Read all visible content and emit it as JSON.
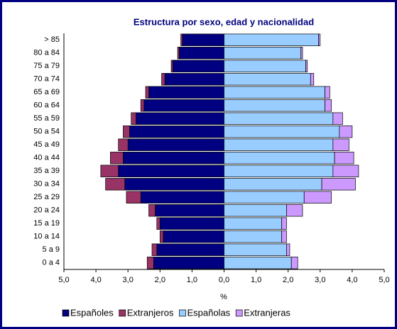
{
  "chart_data": {
    "type": "bar",
    "orientation": "horizontal",
    "stacked": true,
    "title": "Estructura por sexo, edad y nacionalidad",
    "xlabel": "%",
    "categories": [
      "0 a 4",
      "5 a 9",
      "10 a 14",
      "15 a 19",
      "20 a 24",
      "25 a 29",
      "30 a 34",
      "35 a 39",
      "40 a 44",
      "45 a 49",
      "50 a 54",
      "55 a 59",
      "60 a 64",
      "65 a 69",
      "70 a 74",
      "75 a 79",
      "80 a 84",
      "> 85"
    ],
    "series": [
      {
        "name": "Españoles",
        "color": "#000080",
        "values": [
          -2.2,
          -2.1,
          -1.9,
          -2.0,
          -2.15,
          -2.6,
          -3.1,
          -3.3,
          -3.15,
          -3.0,
          -2.95,
          -2.75,
          -2.5,
          -2.35,
          -1.85,
          -1.6,
          -1.4,
          -1.3
        ]
      },
      {
        "name": "Extranjeros",
        "color": "#993366",
        "values": [
          -0.2,
          -0.15,
          -0.1,
          -0.1,
          -0.2,
          -0.45,
          -0.6,
          -0.55,
          -0.4,
          -0.3,
          -0.2,
          -0.15,
          -0.1,
          -0.1,
          -0.1,
          -0.05,
          -0.05,
          -0.05
        ]
      },
      {
        "name": "Españolas",
        "color": "#99ccff",
        "values": [
          2.1,
          1.95,
          1.8,
          1.8,
          1.95,
          2.5,
          3.05,
          3.4,
          3.45,
          3.4,
          3.6,
          3.4,
          3.15,
          3.15,
          2.7,
          2.55,
          2.4,
          2.95
        ]
      },
      {
        "name": "Extranjeras",
        "color": "#cc99ff",
        "values": [
          0.2,
          0.1,
          0.15,
          0.15,
          0.5,
          0.85,
          1.05,
          0.8,
          0.6,
          0.5,
          0.4,
          0.3,
          0.2,
          0.15,
          0.1,
          0.05,
          0.05,
          0.05
        ]
      }
    ],
    "xlim": [
      -5,
      5
    ],
    "xticks": [
      {
        "value": -5,
        "label": "5,0"
      },
      {
        "value": -4,
        "label": "4,0"
      },
      {
        "value": -3,
        "label": "3,0"
      },
      {
        "value": -2,
        "label": "2,0"
      },
      {
        "value": -1,
        "label": "1,0"
      },
      {
        "value": 0,
        "label": "0,0"
      },
      {
        "value": 1,
        "label": "1,0"
      },
      {
        "value": 2,
        "label": "2,0"
      },
      {
        "value": 3,
        "label": "3,0"
      },
      {
        "value": 4,
        "label": "4,0"
      },
      {
        "value": 5,
        "label": "5,0"
      }
    ],
    "grid": false,
    "legend": "bottom"
  }
}
